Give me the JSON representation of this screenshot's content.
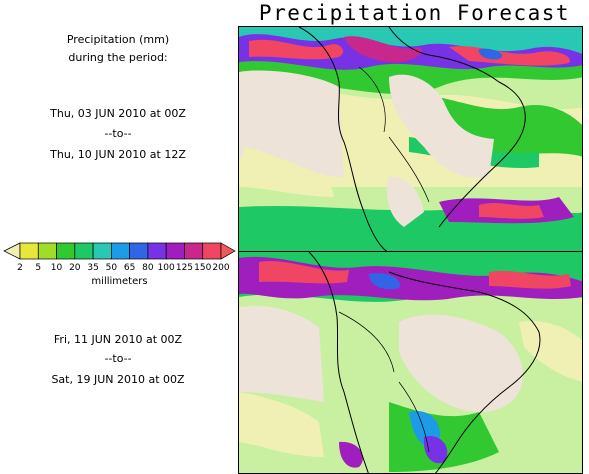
{
  "title": "Precipitation Forecast",
  "header_label": {
    "line1": "Precipitation (mm)",
    "line2": "during the period:"
  },
  "period1": {
    "start": "Thu, 03 JUN 2010 at 00Z",
    "sep": "--to--",
    "end": "Thu, 10 JUN 2010 at 12Z"
  },
  "period2": {
    "start": "Fri, 11 JUN 2010 at 00Z",
    "sep": "--to--",
    "end": "Sat, 19 JUN 2010 at 00Z"
  },
  "legend": {
    "units": "millimeters",
    "ticks": [
      "2",
      "5",
      "10",
      "20",
      "35",
      "50",
      "65",
      "80",
      "100",
      "125",
      "150",
      "200"
    ],
    "colors": [
      "#e6e63c",
      "#a0dc28",
      "#32c832",
      "#1ec864",
      "#28c8b4",
      "#1e9be6",
      "#3264e6",
      "#7832e6",
      "#a01ebe",
      "#c8288c",
      "#f04664"
    ],
    "under_color": "#f0f0b4",
    "over_color": "#f05a5a"
  },
  "colors": {
    "land": "#ede3d8",
    "ocean_light": "#f0f0b4"
  }
}
